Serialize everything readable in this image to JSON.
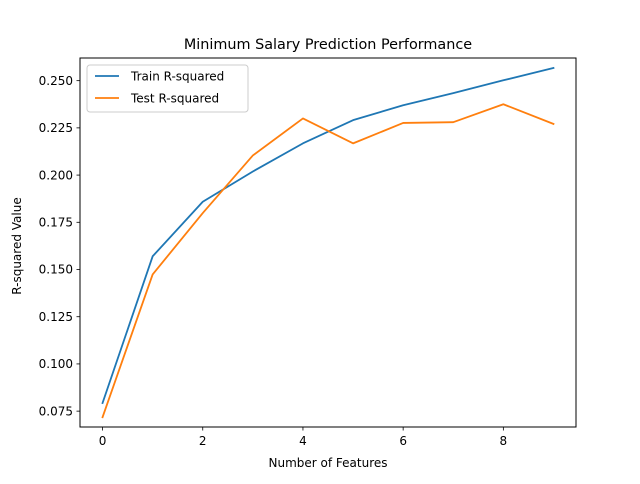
{
  "chart_data": {
    "type": "line",
    "title": "Minimum Salary Prediction Performance",
    "xlabel": "Number of Features",
    "ylabel": "R-squared Value",
    "xlim": [
      -0.45,
      9.45
    ],
    "ylim": [
      0.0666,
      0.262
    ],
    "xticks": [
      0,
      2,
      4,
      6,
      8
    ],
    "yticks": [
      0.075,
      0.1,
      0.125,
      0.15,
      0.175,
      0.2,
      0.225,
      0.25
    ],
    "ytick_labels": [
      "0.075",
      "0.100",
      "0.125",
      "0.150",
      "0.175",
      "0.200",
      "0.225",
      "0.250"
    ],
    "grid": false,
    "legend_position": "upper-left",
    "x": [
      0,
      1,
      2,
      3,
      4,
      5,
      6,
      7,
      8,
      9
    ],
    "series": [
      {
        "name": "Train R-squared",
        "color": "#1f77b4",
        "values": [
          0.0793,
          0.157,
          0.1859,
          0.2019,
          0.2168,
          0.2291,
          0.237,
          0.2434,
          0.2502,
          0.2567
        ]
      },
      {
        "name": "Test R-squared",
        "color": "#ff7f0e",
        "values": [
          0.0718,
          0.1474,
          0.1799,
          0.2104,
          0.23,
          0.2168,
          0.2276,
          0.228,
          0.2375,
          0.2271
        ]
      }
    ]
  }
}
